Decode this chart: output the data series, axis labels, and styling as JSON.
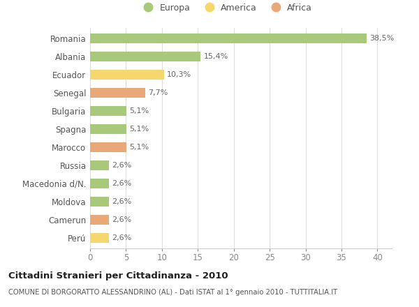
{
  "categories": [
    "Romania",
    "Albania",
    "Ecuador",
    "Senegal",
    "Bulgaria",
    "Spagna",
    "Marocco",
    "Russia",
    "Macedonia d/N.",
    "Moldova",
    "Camerun",
    "Perú"
  ],
  "values": [
    38.5,
    15.4,
    10.3,
    7.7,
    5.1,
    5.1,
    5.1,
    2.6,
    2.6,
    2.6,
    2.6,
    2.6
  ],
  "labels": [
    "38,5%",
    "15,4%",
    "10,3%",
    "7,7%",
    "5,1%",
    "5,1%",
    "5,1%",
    "2,6%",
    "2,6%",
    "2,6%",
    "2,6%",
    "2,6%"
  ],
  "continents": [
    "Europa",
    "Europa",
    "America",
    "Africa",
    "Europa",
    "Europa",
    "Africa",
    "Europa",
    "Europa",
    "Europa",
    "Africa",
    "America"
  ],
  "colors": {
    "Europa": "#a8c87a",
    "America": "#f5d76e",
    "Africa": "#e8a878"
  },
  "legend_colors": {
    "Europa": "#a8c87a",
    "America": "#f5d76e",
    "Africa": "#e8a878"
  },
  "xlim": [
    0,
    42
  ],
  "xticks": [
    0,
    5,
    10,
    15,
    20,
    25,
    30,
    35,
    40
  ],
  "title": "Cittadini Stranieri per Cittadinanza - 2010",
  "subtitle": "COMUNE DI BORGORATTO ALESSANDRINO (AL) - Dati ISTAT al 1° gennaio 2010 - TUTTITALIA.IT",
  "bg_color": "#ffffff",
  "grid_color": "#dddddd",
  "bar_height": 0.55
}
